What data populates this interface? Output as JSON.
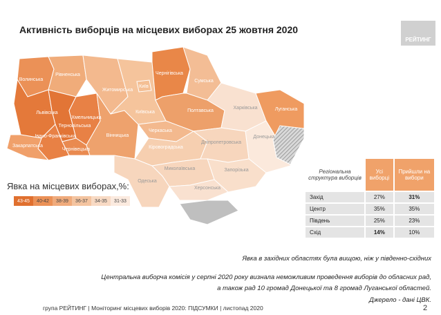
{
  "header": {
    "title": "Активність виборців на місцевих виборах 25 жовтня 2020",
    "logo": "РЕЙТИНГ"
  },
  "map": {
    "regions": [
      "Волинська",
      "Рівненська",
      "Львівська",
      "Тернопільська",
      "Хмельницька",
      "Івано-Франківська",
      "Закарпатська",
      "Чернівецька",
      "Житомирська",
      "Київська",
      "Київ",
      "Вінницька",
      "Чернігівська",
      "Сумська",
      "Полтавська",
      "Черкаська",
      "Кіровоградська",
      "Харківська",
      "Луганська",
      "Донецька",
      "Дніпропетровська",
      "Запорізька",
      "Миколаївська",
      "Одеська",
      "Херсонська"
    ]
  },
  "legend": {
    "title": "Явка на місцевих виборах,%:",
    "items": [
      "43-45",
      "40-42",
      "38-39",
      "36-37",
      "34-35",
      "31-33"
    ]
  },
  "table": {
    "header": [
      "Регіональна структура виборців",
      "Усі виборці",
      "Прийшли на вибори"
    ],
    "rows": [
      [
        "Захід",
        "27%",
        "31%"
      ],
      [
        "Центр",
        "35%",
        "35%"
      ],
      [
        "Південь",
        "25%",
        "23%"
      ],
      [
        "Схід",
        "14%",
        "10%"
      ]
    ]
  },
  "notes": {
    "highlight": "Явка в західних областях була вищою, ніж у південно-східних",
    "body": [
      "Центральна виборча комісія у серпні 2020 року визнала неможливим проведення виборів до обласних рад,",
      "а також рад 10 громад Донецької та 8 громад Луганської областей."
    ],
    "source": "Джерело - дані ЦВК."
  },
  "footer": {
    "text": "група РЕЙТИНГ | Моніторинг місцевих виборів 2020: ПІДСУМКИ | листопад 2020",
    "page": "2"
  }
}
